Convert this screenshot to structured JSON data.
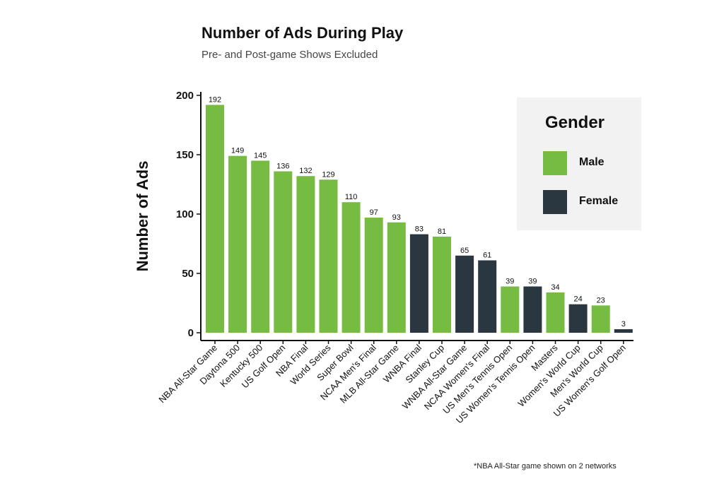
{
  "title": "Number of Ads During Play",
  "subtitle": "Pre- and Post-game Shows Excluded",
  "footnote": "*NBA All-Star game shown on 2 networks",
  "colors": {
    "Male": "#76bc43",
    "Female": "#2a3740"
  },
  "legend": {
    "title": "Gender",
    "items": [
      {
        "label": "Male",
        "color": "#76bc43"
      },
      {
        "label": "Female",
        "color": "#2a3740"
      }
    ]
  },
  "chart_data": {
    "type": "bar",
    "ylabel": "Number of Ads",
    "xlabel": "",
    "ylim": [
      0,
      200
    ],
    "yticks": [
      0,
      50,
      100,
      150,
      200
    ],
    "legend_position": "top-right",
    "categories": [
      "NBA All-Star Game",
      "Daytona 500",
      "Kentucky 500",
      "US Golf Open",
      "NBA Final",
      "World Series",
      "Super Bowl",
      "NCAA Men's Final",
      "MLB All-Star Game",
      "WNBA Final",
      "Stanley Cup",
      "WNBA All-Star Game",
      "NCAA Women's Final",
      "US Men's Tennis Open",
      "US Women's Tennis Open",
      "Masters",
      "Women's World Cup",
      "Men's World Cup",
      "US Women's Golf Open"
    ],
    "values": [
      192,
      149,
      145,
      136,
      132,
      129,
      110,
      97,
      93,
      83,
      81,
      65,
      61,
      39,
      39,
      34,
      24,
      23,
      3
    ],
    "gender": [
      "Male",
      "Male",
      "Male",
      "Male",
      "Male",
      "Male",
      "Male",
      "Male",
      "Male",
      "Female",
      "Male",
      "Female",
      "Female",
      "Male",
      "Female",
      "Male",
      "Female",
      "Male",
      "Female"
    ]
  }
}
